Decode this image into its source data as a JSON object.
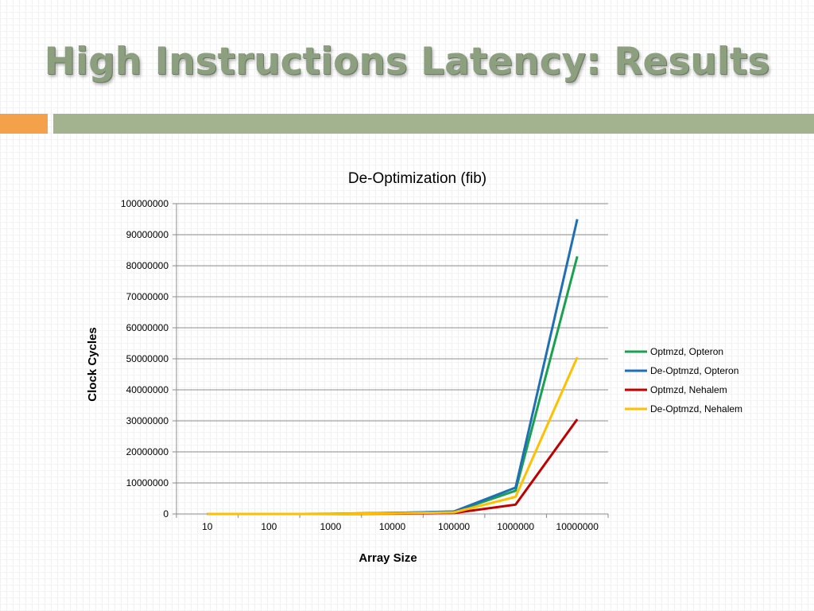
{
  "slide": {
    "title": "High Instructions Latency: Results",
    "accent_colors": {
      "title": "#8c9f7e",
      "orange_bar": "#f4a14a",
      "green_bar": "#a4b38f"
    }
  },
  "chart_data": {
    "type": "line",
    "title": "De-Optimization (fib)",
    "xlabel": "Array Size",
    "ylabel": "Clock Cycles",
    "categories": [
      "10",
      "100",
      "1000",
      "10000",
      "100000",
      "1000000",
      "10000000"
    ],
    "ylim": [
      0,
      100000000
    ],
    "yticks": [
      "0",
      "10000000",
      "20000000",
      "30000000",
      "40000000",
      "50000000",
      "60000000",
      "70000000",
      "80000000",
      "90000000",
      "100000000"
    ],
    "grid": true,
    "legend_position": "right",
    "series": [
      {
        "name": "Optmzd, Opteron",
        "color": "#1aa14f",
        "values": [
          300,
          3000,
          30000,
          300000,
          700000,
          7500000,
          83000000
        ]
      },
      {
        "name": "De-Optmzd, Opteron",
        "color": "#1f6fb5",
        "values": [
          300,
          3000,
          30000,
          300000,
          800000,
          8500000,
          95000000
        ]
      },
      {
        "name": "Optmzd, Nehalem",
        "color": "#c00000",
        "values": [
          100,
          1000,
          10000,
          100000,
          300000,
          3000000,
          30500000
        ]
      },
      {
        "name": "De-Optmzd, Nehalem",
        "color": "#ffc000",
        "values": [
          200,
          2000,
          20000,
          200000,
          500000,
          5500000,
          50500000
        ]
      }
    ]
  }
}
